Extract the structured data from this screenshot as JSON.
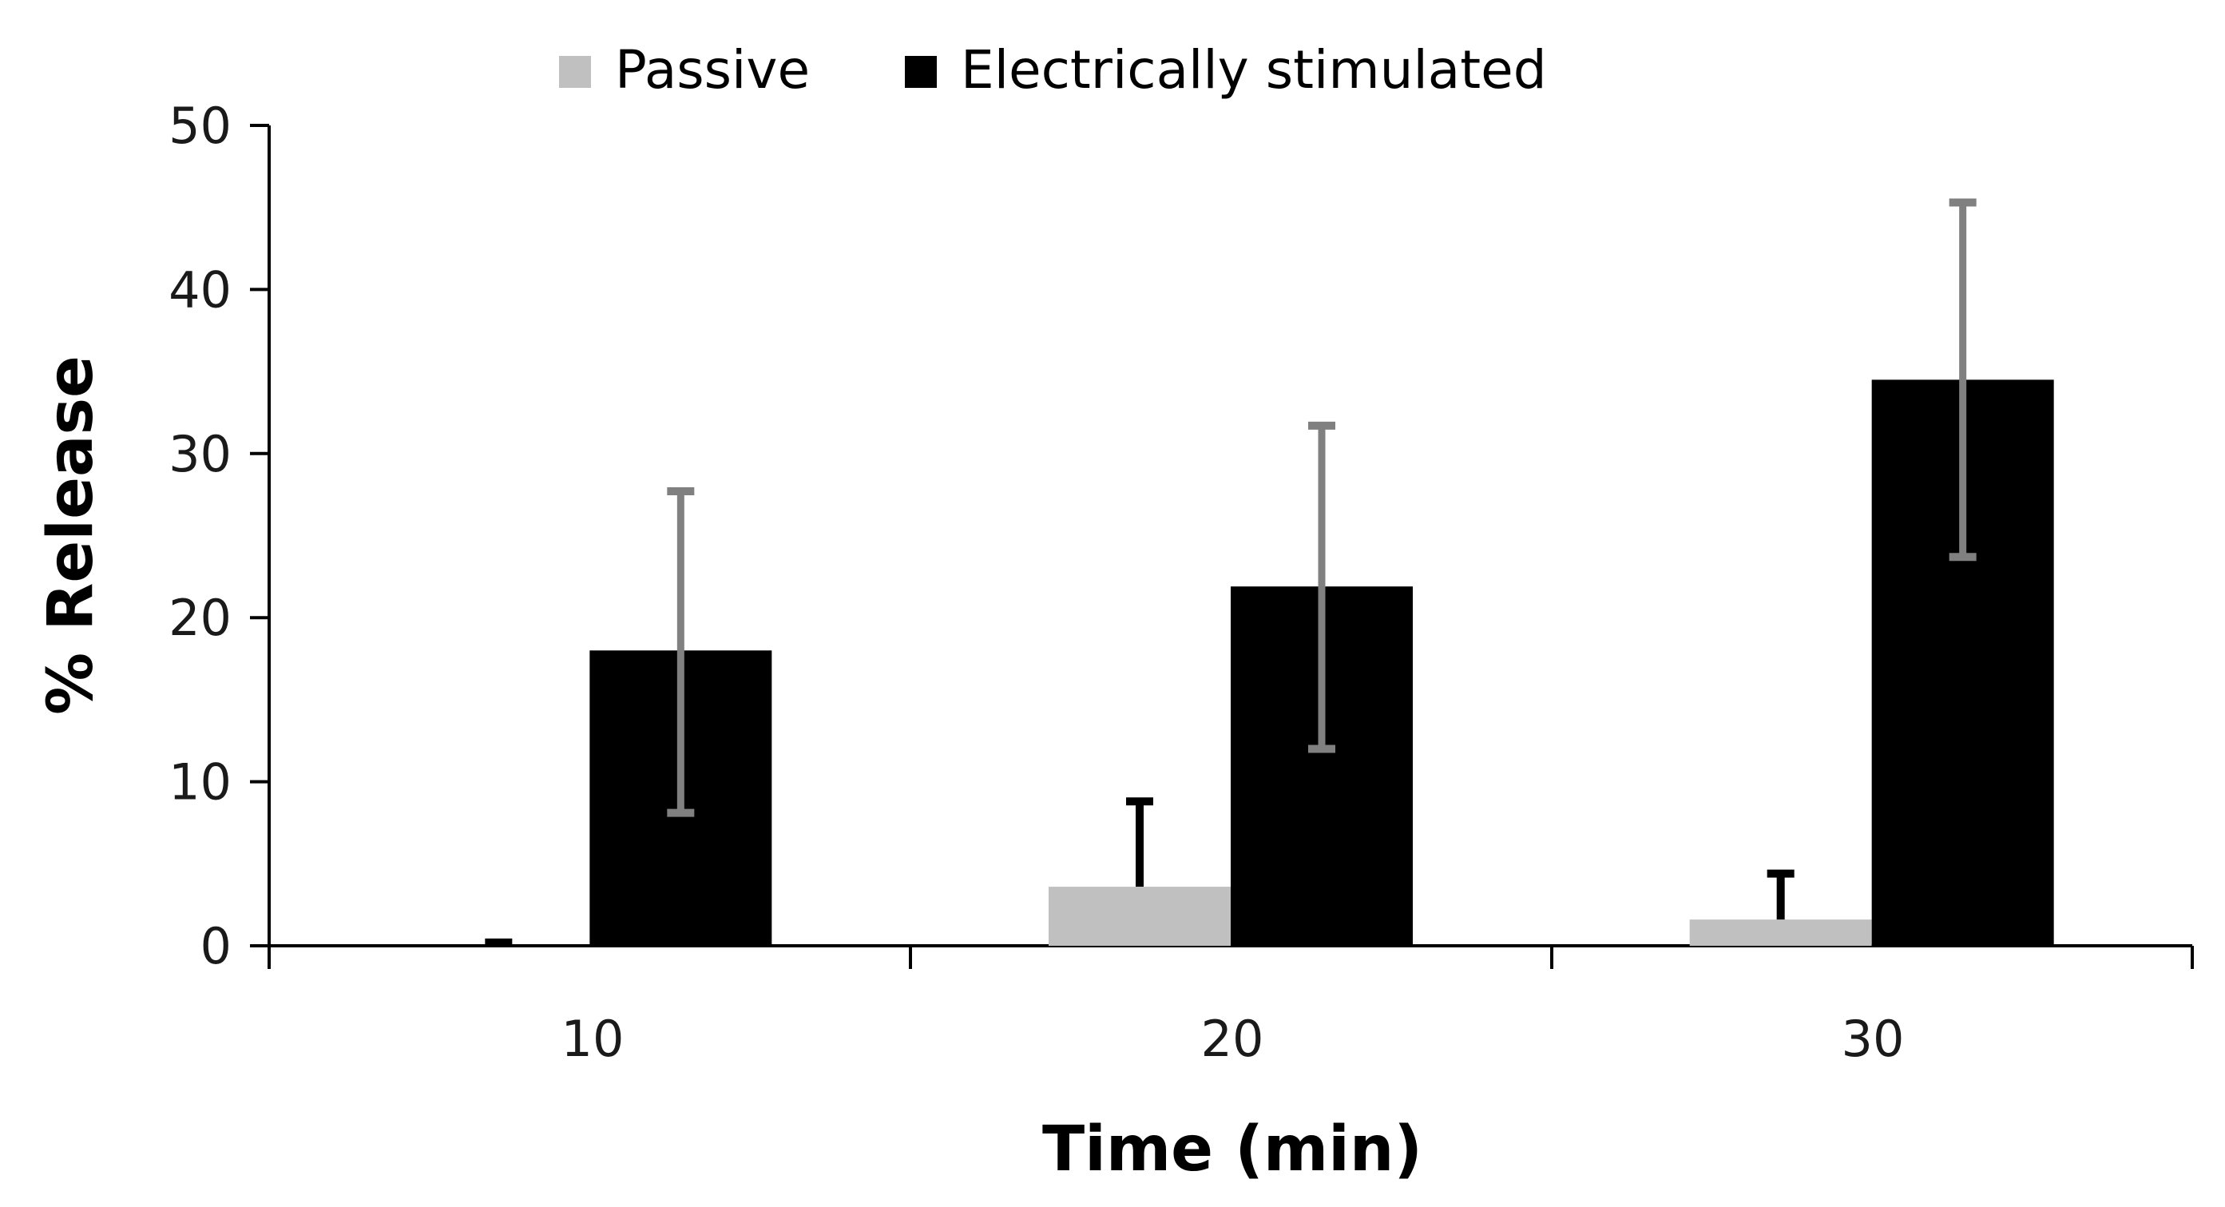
{
  "chart_data": {
    "type": "bar",
    "title": "",
    "xlabel": "Time (min)",
    "ylabel": "% Release",
    "categories": [
      "10",
      "20",
      "30"
    ],
    "ylim": [
      0,
      50
    ],
    "yticks": [
      "0",
      "10",
      "20",
      "30",
      "40",
      "50"
    ],
    "legend_position": "top-center",
    "grid": false,
    "series": [
      {
        "name": "Passive",
        "color": "#c0c0c0",
        "error_color": "#000000",
        "values": [
          0,
          3.6,
          1.6
        ],
        "error_upper": [
          0.2,
          8.8,
          4.4
        ]
      },
      {
        "name": "Electrically stimulated",
        "color": "#000000",
        "error_color": "#808080",
        "values": [
          18,
          21.9,
          34.5
        ],
        "error_upper": [
          27.7,
          31.7,
          45.3
        ],
        "error_lower": [
          8.1,
          12,
          23.7
        ]
      }
    ]
  }
}
